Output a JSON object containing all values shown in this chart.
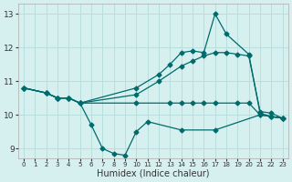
{
  "xlabel": "Humidex (Indice chaleur)",
  "background_color": "#d6f0f0",
  "grid_color": "#b8dede",
  "line_color": "#006b6b",
  "xlim": [
    -0.5,
    23.5
  ],
  "ylim": [
    8.7,
    13.3
  ],
  "yticks": [
    9,
    10,
    11,
    12,
    13
  ],
  "xticks": [
    0,
    1,
    2,
    3,
    4,
    5,
    6,
    7,
    8,
    9,
    10,
    11,
    12,
    13,
    14,
    15,
    16,
    17,
    18,
    19,
    20,
    21,
    22,
    23
  ],
  "series": [
    {
      "x": [
        0,
        2,
        3,
        4,
        5,
        6,
        7,
        8,
        9,
        10,
        11,
        14,
        17,
        21,
        22,
        23
      ],
      "y": [
        10.8,
        10.65,
        10.5,
        10.5,
        10.35,
        9.7,
        9.0,
        8.85,
        8.8,
        9.5,
        9.8,
        9.55,
        9.55,
        10.0,
        9.95,
        9.9
      ]
    },
    {
      "x": [
        0,
        2,
        3,
        4,
        5,
        10,
        13,
        14,
        15,
        16,
        17,
        19,
        20,
        21,
        22,
        23
      ],
      "y": [
        10.8,
        10.65,
        10.5,
        10.5,
        10.35,
        10.35,
        10.35,
        10.35,
        10.35,
        10.35,
        10.35,
        10.35,
        10.35,
        10.0,
        9.95,
        9.9
      ]
    },
    {
      "x": [
        0,
        2,
        3,
        4,
        5,
        10,
        12,
        14,
        15,
        16,
        17,
        18,
        19,
        20,
        21,
        22,
        23
      ],
      "y": [
        10.8,
        10.65,
        10.5,
        10.5,
        10.35,
        10.6,
        11.0,
        11.45,
        11.6,
        11.75,
        11.85,
        11.85,
        11.8,
        11.75,
        10.1,
        10.05,
        9.9
      ]
    },
    {
      "x": [
        0,
        2,
        3,
        4,
        5,
        10,
        12,
        13,
        14,
        15,
        16,
        17,
        18,
        20,
        21,
        22,
        23
      ],
      "y": [
        10.8,
        10.65,
        10.5,
        10.5,
        10.35,
        10.8,
        11.2,
        11.5,
        11.85,
        11.9,
        11.85,
        13.0,
        12.4,
        11.8,
        10.05,
        9.95,
        9.9
      ]
    }
  ],
  "marker": "D",
  "markersize": 2.5
}
